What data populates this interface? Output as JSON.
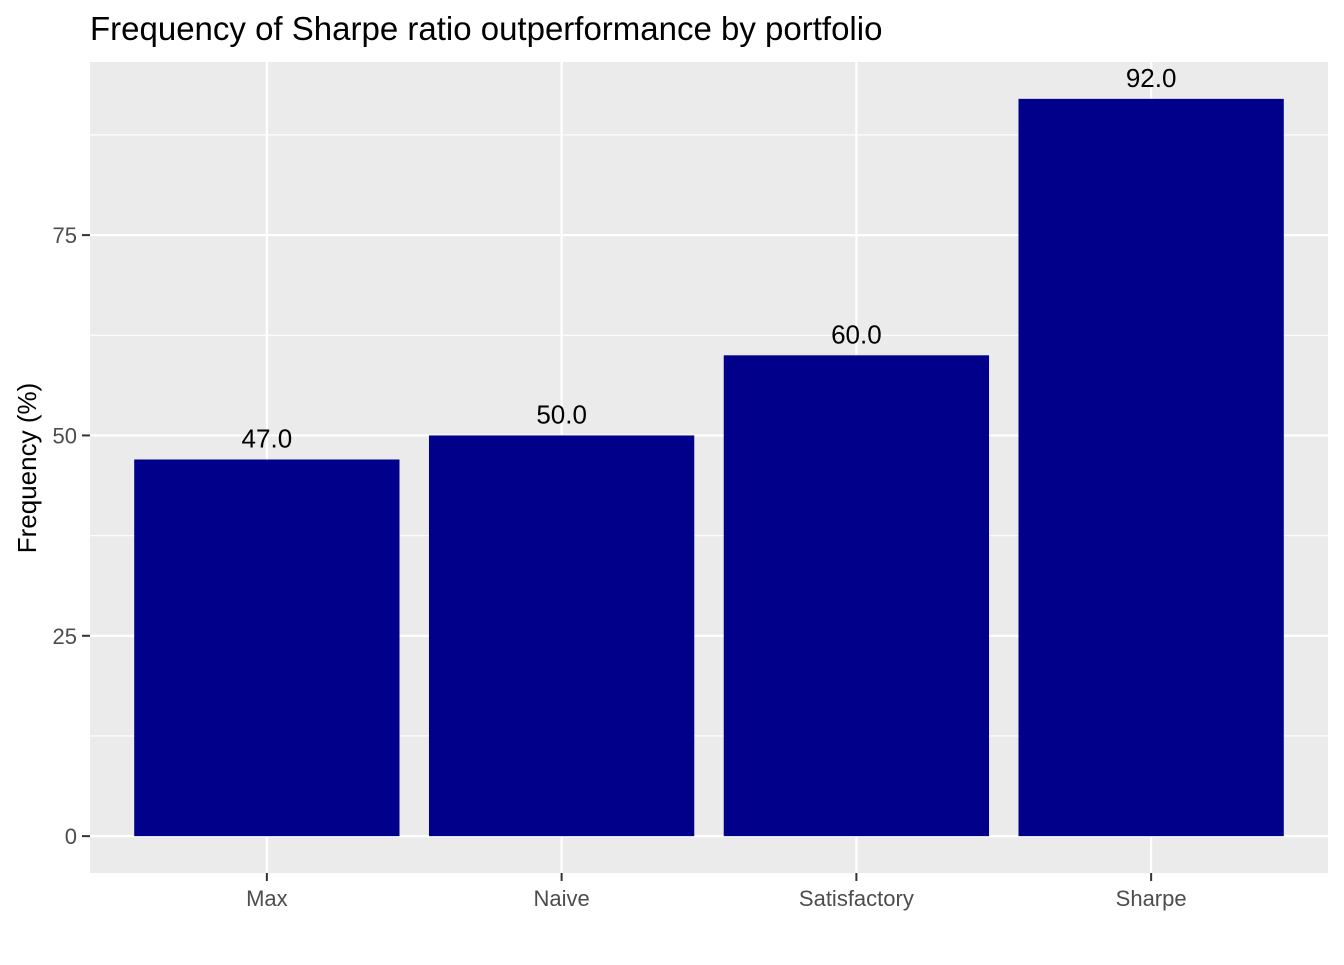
{
  "chart_data": {
    "type": "bar",
    "title": "Frequency of Sharpe ratio outperformance by portfolio",
    "xlabel": "",
    "ylabel": "Frequency (%)",
    "categories": [
      "Max",
      "Naive",
      "Satisfactory",
      "Sharpe"
    ],
    "values": [
      47.0,
      50.0,
      60.0,
      92.0
    ],
    "data_labels": [
      "47.0",
      "50.0",
      "60.0",
      "92.0"
    ],
    "y_ticks": [
      0,
      25,
      50,
      75
    ],
    "ylim": [
      -4.6,
      96.6
    ],
    "grid": true,
    "legend": "none",
    "colors": {
      "bar": "#00008B",
      "panel": "#EBEBEB",
      "grid": "#FFFFFF",
      "tick_text": "#4D4D4D",
      "tick_mark": "#333333"
    }
  }
}
